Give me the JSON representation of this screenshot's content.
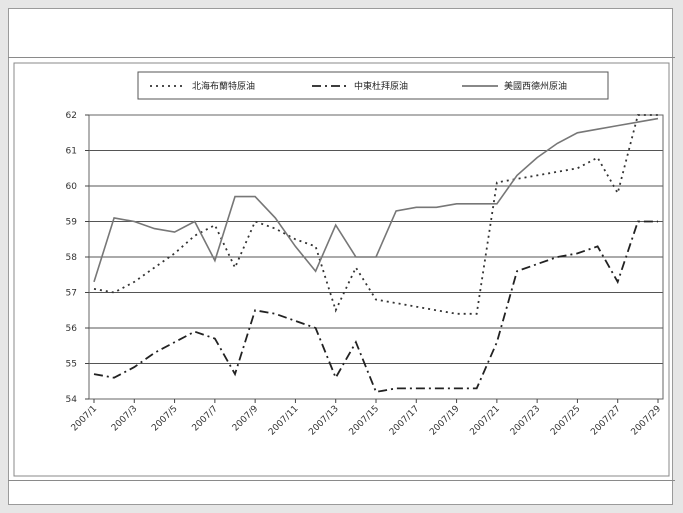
{
  "chart_data": {
    "type": "line",
    "title": "",
    "xlabel": "",
    "ylabel": "",
    "ylim": [
      54,
      62
    ],
    "yticks": [
      54,
      55,
      56,
      57,
      58,
      59,
      60,
      61,
      62
    ],
    "grid": true,
    "legend_placement": "top",
    "x_tick_labels": [
      "2007/1",
      "2007/3",
      "2007/5",
      "2007/7",
      "2007/9",
      "2007/11",
      "2007/13",
      "2007/15",
      "2007/17",
      "2007/19",
      "2007/21",
      "2007/23",
      "2007/25",
      "2007/27",
      "2007/29"
    ],
    "n_points": 29,
    "series": [
      {
        "name": "北海布蘭特原油",
        "style": "dotted",
        "color": "#333333",
        "values": [
          57.1,
          57.0,
          57.3,
          57.7,
          58.1,
          58.6,
          58.9,
          57.7,
          59.0,
          58.8,
          58.5,
          58.3,
          56.5,
          57.7,
          56.8,
          56.7,
          56.6,
          56.5,
          56.4,
          56.4,
          60.1,
          60.2,
          60.3,
          60.4,
          60.5,
          60.8,
          59.8,
          62.0,
          62.0
        ]
      },
      {
        "name": "中東杜拜原油",
        "style": "dashdot",
        "color": "#222222",
        "values": [
          54.7,
          54.6,
          54.9,
          55.3,
          55.6,
          55.9,
          55.7,
          54.7,
          56.5,
          56.4,
          56.2,
          56.0,
          54.6,
          55.6,
          54.2,
          54.3,
          54.3,
          54.3,
          54.3,
          54.3,
          55.6,
          57.6,
          57.8,
          58.0,
          58.1,
          58.3,
          57.3,
          59.0,
          59.0
        ]
      },
      {
        "name": "美國西德州原油",
        "style": "solid",
        "color": "#777777",
        "values": [
          57.3,
          59.1,
          59.0,
          58.8,
          58.7,
          59.0,
          57.9,
          59.7,
          59.7,
          59.1,
          58.3,
          57.6,
          58.9,
          58.0,
          58.0,
          59.3,
          59.4,
          59.4,
          59.5,
          59.5,
          59.5,
          60.3,
          60.8,
          61.2,
          61.5,
          61.6,
          61.7,
          61.8,
          61.9
        ]
      }
    ]
  }
}
